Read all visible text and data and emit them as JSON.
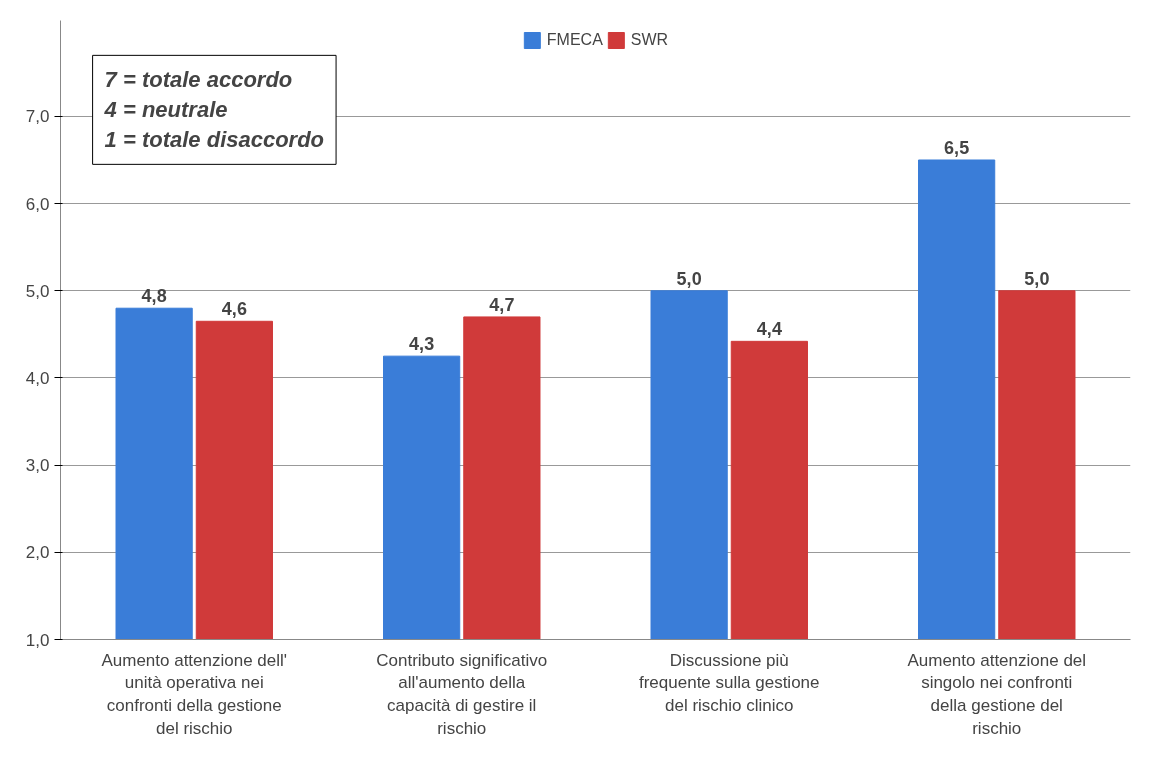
{
  "chart_data": {
    "type": "bar",
    "categories": [
      "Aumento attenzione dell' unità operativa nei confronti della gestione del rischio",
      "Contributo significativo all'aumento della capacità di gestire il rischio",
      "Discussione più frequente sulla gestione del rischio clinico",
      "Aumento attenzione del singolo nei confronti della gestione del rischio"
    ],
    "series": [
      {
        "name": "FMECA",
        "color": "#3a7dd8",
        "values": [
          4.8,
          4.25,
          5.0,
          6.5
        ],
        "value_labels": [
          "4,8",
          "4,3",
          "5,0",
          "6,5"
        ]
      },
      {
        "name": "SWR",
        "color": "#d03a3a",
        "values": [
          4.65,
          4.7,
          4.42,
          5.0
        ],
        "value_labels": [
          "4,6",
          "4,7",
          "4,4",
          "5,0"
        ]
      }
    ],
    "ylim": [
      1,
      8.1
    ],
    "yticks": [
      {
        "value": 1,
        "label": "1,0"
      },
      {
        "value": 2,
        "label": "2,0"
      },
      {
        "value": 3,
        "label": "3,0"
      },
      {
        "value": 4,
        "label": "4,0"
      },
      {
        "value": 5,
        "label": "5,0"
      },
      {
        "value": 6,
        "label": "6,0"
      },
      {
        "value": 7,
        "label": "7,0"
      }
    ],
    "grid": "y",
    "legend": "top",
    "annotations": [
      "7 = totale accordo",
      "4 = neutrale",
      "1 = totale disaccordo"
    ]
  }
}
